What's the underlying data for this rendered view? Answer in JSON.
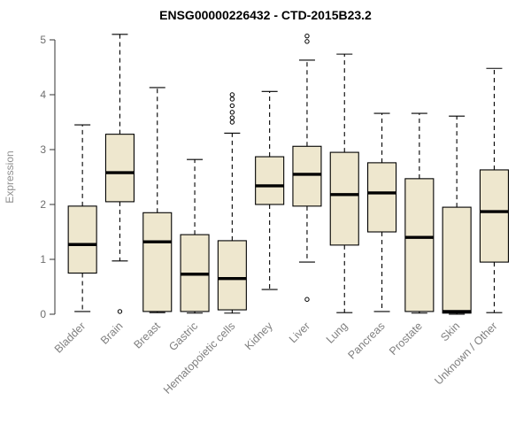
{
  "chart_data": {
    "type": "boxplot",
    "title": "ENSG00000226432 - CTD-2015B23.2",
    "xlabel": "",
    "ylabel": "Expression",
    "ylim": [
      0,
      5
    ],
    "yticks": [
      0,
      1,
      2,
      3,
      4,
      5
    ],
    "grid": false,
    "legend": null,
    "categories": [
      "Bladder",
      "Brain",
      "Breast",
      "Gastric",
      "Hematopoietic cells",
      "Kidney",
      "Liver",
      "Lung",
      "Pancreas",
      "Prostate",
      "Skin",
      "Unknown / Other"
    ],
    "boxes": [
      {
        "category": "Bladder",
        "whisker_low": 0.05,
        "q1": 0.75,
        "median": 1.27,
        "q3": 1.97,
        "whisker_high": 3.45,
        "outliers": []
      },
      {
        "category": "Brain",
        "whisker_low": 0.97,
        "q1": 2.05,
        "median": 2.58,
        "q3": 3.28,
        "whisker_high": 5.1,
        "outliers": [
          0.05
        ]
      },
      {
        "category": "Breast",
        "whisker_low": 0.03,
        "q1": 0.05,
        "median": 1.32,
        "q3": 1.85,
        "whisker_high": 4.13,
        "outliers": []
      },
      {
        "category": "Gastric",
        "whisker_low": 0.02,
        "q1": 0.05,
        "median": 0.73,
        "q3": 1.45,
        "whisker_high": 2.82,
        "outliers": []
      },
      {
        "category": "Hematopoietic cells",
        "whisker_low": 0.02,
        "q1": 0.08,
        "median": 0.65,
        "q3": 1.34,
        "whisker_high": 3.3,
        "outliers": [
          3.5,
          3.58,
          3.68,
          3.8,
          3.92,
          4.0
        ]
      },
      {
        "category": "Kidney",
        "whisker_low": 0.45,
        "q1": 2.0,
        "median": 2.34,
        "q3": 2.87,
        "whisker_high": 4.06,
        "outliers": []
      },
      {
        "category": "Liver",
        "whisker_low": 0.95,
        "q1": 1.97,
        "median": 2.55,
        "q3": 3.06,
        "whisker_high": 4.63,
        "outliers": [
          0.27,
          4.97,
          5.07
        ]
      },
      {
        "category": "Lung",
        "whisker_low": 0.03,
        "q1": 1.26,
        "median": 2.18,
        "q3": 2.95,
        "whisker_high": 4.74,
        "outliers": []
      },
      {
        "category": "Pancreas",
        "whisker_low": 0.05,
        "q1": 1.5,
        "median": 2.21,
        "q3": 2.76,
        "whisker_high": 3.66,
        "outliers": []
      },
      {
        "category": "Prostate",
        "whisker_low": 0.02,
        "q1": 0.05,
        "median": 1.4,
        "q3": 2.47,
        "whisker_high": 3.66,
        "outliers": []
      },
      {
        "category": "Skin",
        "whisker_low": 0.0,
        "q1": 0.02,
        "median": 0.05,
        "q3": 1.95,
        "whisker_high": 3.61,
        "outliers": []
      },
      {
        "category": "Unknown / Other",
        "whisker_low": 0.03,
        "q1": 0.95,
        "median": 1.87,
        "q3": 2.63,
        "whisker_high": 4.48,
        "outliers": []
      }
    ]
  },
  "style": {
    "background": "#FFFFFF",
    "box_fill": "#EEE7CE",
    "box_stroke": "#000000",
    "median_color": "#000000",
    "axis_color": "#333333",
    "tick_label_color": "#6E6E6E",
    "category_label_color": "#808080",
    "ylabel_color": "#909090",
    "title_color": "#000000"
  }
}
